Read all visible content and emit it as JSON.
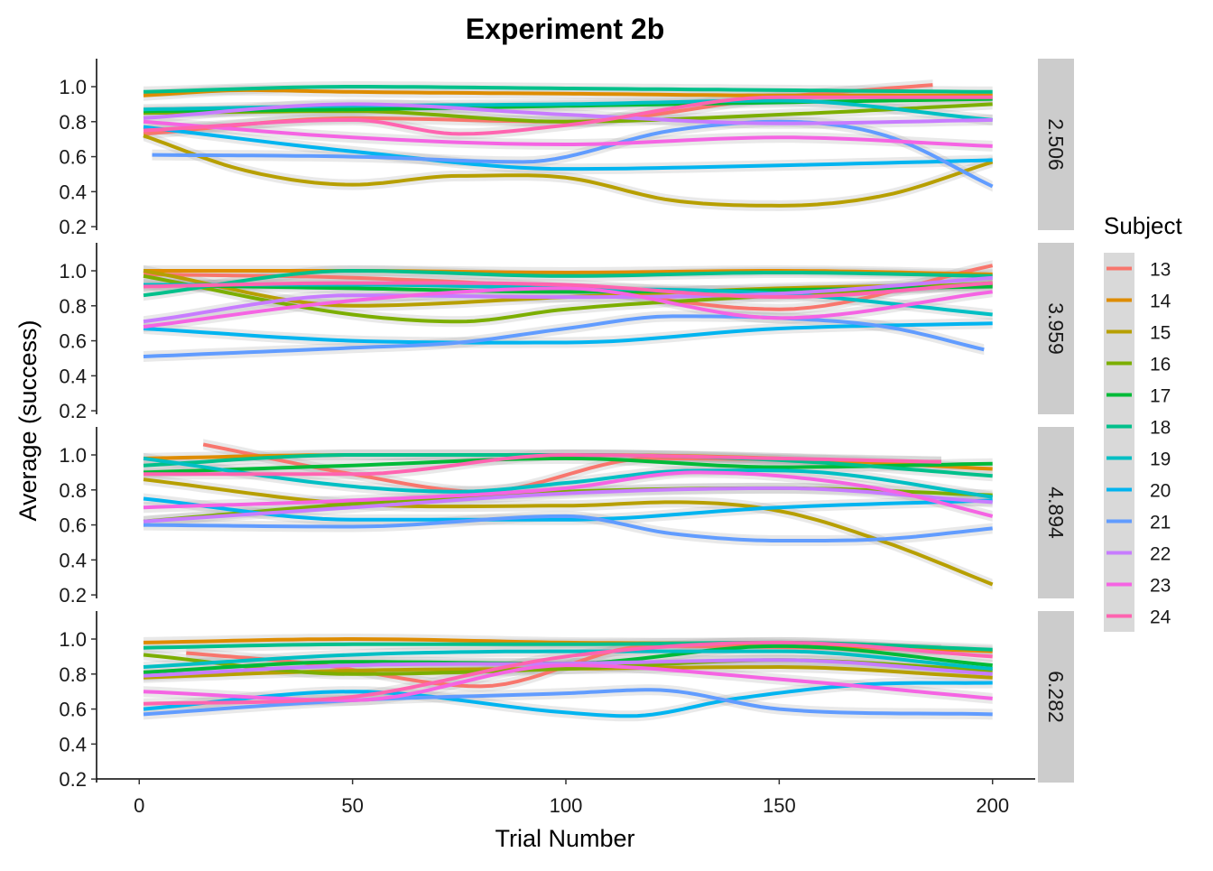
{
  "chart_data": {
    "type": "line",
    "title": "Experiment 2b",
    "xlabel": "Trial Number",
    "ylabel": "Average (success)",
    "xlim": [
      -10,
      210
    ],
    "ylim": [
      0.18,
      1.16
    ],
    "xticks": [
      0,
      50,
      100,
      150,
      200
    ],
    "xtick_labels": [
      "0",
      "50",
      "100",
      "150",
      "200"
    ],
    "yticks": [
      0.2,
      0.4,
      0.6,
      0.8,
      1.0
    ],
    "ytick_labels": [
      "0.2",
      "0.4",
      "0.6",
      "0.8",
      "1.0"
    ],
    "grid": false,
    "legend": {
      "title": "Subject",
      "position": "right"
    },
    "subjects": [
      {
        "name": "13",
        "color": "#F8766D"
      },
      {
        "name": "14",
        "color": "#DE8C00"
      },
      {
        "name": "15",
        "color": "#B79F00"
      },
      {
        "name": "16",
        "color": "#7CAE00"
      },
      {
        "name": "17",
        "color": "#00BA38"
      },
      {
        "name": "18",
        "color": "#00C08B"
      },
      {
        "name": "19",
        "color": "#00BFC4"
      },
      {
        "name": "20",
        "color": "#00B4F0"
      },
      {
        "name": "21",
        "color": "#619CFF"
      },
      {
        "name": "22",
        "color": "#C77CFF"
      },
      {
        "name": "23",
        "color": "#F564E3"
      },
      {
        "name": "24",
        "color": "#FF64B0"
      }
    ],
    "panels": [
      {
        "label": "2.506",
        "series": [
          {
            "subject": "13",
            "x": [
              1,
              50,
              100,
              150,
              186
            ],
            "y": [
              0.73,
              0.82,
              0.8,
              0.94,
              1.01
            ]
          },
          {
            "subject": "14",
            "x": [
              1,
              25,
              50,
              100,
              150,
              200
            ],
            "y": [
              0.95,
              0.98,
              0.97,
              0.96,
              0.95,
              0.95
            ]
          },
          {
            "subject": "15",
            "x": [
              1,
              25,
              50,
              75,
              100,
              125,
              150,
              175,
              200
            ],
            "y": [
              0.72,
              0.52,
              0.44,
              0.49,
              0.48,
              0.35,
              0.32,
              0.38,
              0.57
            ]
          },
          {
            "subject": "16",
            "x": [
              1,
              50,
              100,
              150,
              200
            ],
            "y": [
              0.85,
              0.86,
              0.8,
              0.84,
              0.9
            ]
          },
          {
            "subject": "17",
            "x": [
              1,
              50,
              100,
              150,
              200
            ],
            "y": [
              0.86,
              0.87,
              0.89,
              0.91,
              0.93
            ]
          },
          {
            "subject": "18",
            "x": [
              1,
              50,
              100,
              150,
              200
            ],
            "y": [
              0.97,
              1.0,
              0.99,
              0.98,
              0.97
            ]
          },
          {
            "subject": "19",
            "x": [
              1,
              50,
              100,
              150,
              200
            ],
            "y": [
              0.87,
              0.89,
              0.9,
              0.92,
              0.81
            ]
          },
          {
            "subject": "20",
            "x": [
              1,
              50,
              100,
              150,
              200
            ],
            "y": [
              0.77,
              0.63,
              0.53,
              0.55,
              0.58
            ]
          },
          {
            "subject": "21",
            "x": [
              3,
              50,
              90,
              125,
              150,
              175,
              200
            ],
            "y": [
              0.61,
              0.6,
              0.57,
              0.75,
              0.8,
              0.72,
              0.43
            ]
          },
          {
            "subject": "22",
            "x": [
              1,
              50,
              100,
              150,
              200
            ],
            "y": [
              0.82,
              0.9,
              0.84,
              0.79,
              0.81
            ]
          },
          {
            "subject": "23",
            "x": [
              1,
              50,
              100,
              150,
              200
            ],
            "y": [
              0.8,
              0.71,
              0.67,
              0.71,
              0.66
            ]
          },
          {
            "subject": "24",
            "x": [
              1,
              50,
              75,
              100,
              150,
              200
            ],
            "y": [
              0.75,
              0.81,
              0.73,
              0.78,
              0.94,
              0.94
            ]
          }
        ]
      },
      {
        "label": "3.959",
        "series": [
          {
            "subject": "13",
            "x": [
              1,
              50,
              100,
              150,
              200
            ],
            "y": [
              0.98,
              0.96,
              0.9,
              0.78,
              1.03
            ]
          },
          {
            "subject": "14",
            "x": [
              1,
              50,
              100,
              150,
              200
            ],
            "y": [
              1.0,
              1.0,
              0.99,
              1.0,
              0.98
            ]
          },
          {
            "subject": "15",
            "x": [
              1,
              50,
              100,
              150,
              200
            ],
            "y": [
              1.0,
              0.8,
              0.85,
              0.9,
              0.92
            ]
          },
          {
            "subject": "16",
            "x": [
              1,
              50,
              75,
              100,
              150,
              200
            ],
            "y": [
              0.97,
              0.75,
              0.71,
              0.78,
              0.86,
              0.93
            ]
          },
          {
            "subject": "17",
            "x": [
              1,
              50,
              100,
              150,
              200
            ],
            "y": [
              0.92,
              0.9,
              0.88,
              0.89,
              0.91
            ]
          },
          {
            "subject": "18",
            "x": [
              1,
              50,
              100,
              150,
              200
            ],
            "y": [
              0.86,
              1.0,
              0.97,
              0.99,
              0.97
            ]
          },
          {
            "subject": "19",
            "x": [
              1,
              50,
              100,
              150,
              200
            ],
            "y": [
              0.92,
              0.92,
              0.9,
              0.87,
              0.75
            ]
          },
          {
            "subject": "20",
            "x": [
              1,
              50,
              100,
              150,
              200
            ],
            "y": [
              0.67,
              0.6,
              0.59,
              0.67,
              0.7
            ]
          },
          {
            "subject": "21",
            "x": [
              1,
              50,
              75,
              100,
              125,
              150,
              175,
              198
            ],
            "y": [
              0.51,
              0.56,
              0.59,
              0.67,
              0.74,
              0.73,
              0.68,
              0.55
            ]
          },
          {
            "subject": "22",
            "x": [
              1,
              50,
              100,
              150,
              200
            ],
            "y": [
              0.71,
              0.86,
              0.85,
              0.87,
              0.96
            ]
          },
          {
            "subject": "23",
            "x": [
              1,
              50,
              100,
              150,
              200
            ],
            "y": [
              0.68,
              0.83,
              0.9,
              0.73,
              0.88
            ]
          },
          {
            "subject": "24",
            "x": [
              1,
              50,
              100,
              150,
              200
            ],
            "y": [
              0.91,
              0.93,
              0.92,
              0.85,
              0.93
            ]
          }
        ]
      },
      {
        "label": "4.894",
        "series": [
          {
            "subject": "13",
            "x": [
              15,
              50,
              80,
              120,
              160,
              188
            ],
            "y": [
              1.06,
              0.89,
              0.79,
              0.98,
              0.97,
              0.96
            ]
          },
          {
            "subject": "14",
            "x": [
              1,
              50,
              100,
              150,
              200
            ],
            "y": [
              0.98,
              1.0,
              1.0,
              0.98,
              0.92
            ]
          },
          {
            "subject": "15",
            "x": [
              1,
              50,
              100,
              125,
              150,
              175,
              200
            ],
            "y": [
              0.86,
              0.72,
              0.71,
              0.73,
              0.68,
              0.5,
              0.26
            ]
          },
          {
            "subject": "16",
            "x": [
              1,
              50,
              100,
              150,
              200
            ],
            "y": [
              0.62,
              0.72,
              0.79,
              0.81,
              0.77
            ]
          },
          {
            "subject": "17",
            "x": [
              1,
              50,
              100,
              150,
              200
            ],
            "y": [
              0.9,
              0.94,
              0.98,
              0.93,
              0.95
            ]
          },
          {
            "subject": "18",
            "x": [
              1,
              50,
              100,
              150,
              200
            ],
            "y": [
              0.94,
              1.0,
              1.0,
              0.97,
              0.88
            ]
          },
          {
            "subject": "19",
            "x": [
              1,
              50,
              75,
              100,
              130,
              160,
              200
            ],
            "y": [
              0.98,
              0.82,
              0.79,
              0.84,
              0.91,
              0.9,
              0.76
            ]
          },
          {
            "subject": "20",
            "x": [
              1,
              50,
              100,
              150,
              200
            ],
            "y": [
              0.75,
              0.63,
              0.63,
              0.7,
              0.74
            ]
          },
          {
            "subject": "21",
            "x": [
              1,
              50,
              100,
              125,
              150,
              175,
              200
            ],
            "y": [
              0.6,
              0.59,
              0.65,
              0.55,
              0.51,
              0.52,
              0.58
            ]
          },
          {
            "subject": "22",
            "x": [
              1,
              50,
              100,
              150,
              200
            ],
            "y": [
              0.62,
              0.7,
              0.78,
              0.81,
              0.73
            ]
          },
          {
            "subject": "23",
            "x": [
              1,
              50,
              100,
              130,
              150,
              175,
              200
            ],
            "y": [
              0.7,
              0.74,
              0.81,
              0.9,
              0.88,
              0.8,
              0.65
            ]
          },
          {
            "subject": "24",
            "x": [
              1,
              50,
              100,
              150,
              188
            ],
            "y": [
              0.89,
              0.89,
              1.0,
              0.98,
              0.96
            ]
          }
        ]
      },
      {
        "label": "6.282",
        "series": [
          {
            "subject": "13",
            "x": [
              11,
              40,
              80,
              120,
              188
            ],
            "y": [
              0.92,
              0.86,
              0.73,
              0.96,
              0.94
            ]
          },
          {
            "subject": "14",
            "x": [
              1,
              50,
              100,
              150,
              200
            ],
            "y": [
              0.98,
              1.0,
              0.98,
              0.97,
              0.93
            ]
          },
          {
            "subject": "15",
            "x": [
              1,
              50,
              100,
              150,
              200
            ],
            "y": [
              0.78,
              0.82,
              0.83,
              0.84,
              0.78
            ]
          },
          {
            "subject": "16",
            "x": [
              1,
              50,
              100,
              150,
              200
            ],
            "y": [
              0.91,
              0.8,
              0.83,
              0.88,
              0.82
            ]
          },
          {
            "subject": "17",
            "x": [
              1,
              50,
              100,
              150,
              200
            ],
            "y": [
              0.81,
              0.87,
              0.86,
              0.96,
              0.85
            ]
          },
          {
            "subject": "18",
            "x": [
              1,
              50,
              100,
              150,
              200
            ],
            "y": [
              0.95,
              0.97,
              0.97,
              0.98,
              0.94
            ]
          },
          {
            "subject": "19",
            "x": [
              1,
              50,
              100,
              150,
              200
            ],
            "y": [
              0.84,
              0.91,
              0.93,
              0.93,
              0.83
            ]
          },
          {
            "subject": "20",
            "x": [
              1,
              50,
              100,
              115,
              140,
              170,
              200
            ],
            "y": [
              0.6,
              0.7,
              0.58,
              0.56,
              0.66,
              0.74,
              0.75
            ]
          },
          {
            "subject": "21",
            "x": [
              1,
              50,
              100,
              120,
              150,
              200
            ],
            "y": [
              0.57,
              0.65,
              0.69,
              0.71,
              0.6,
              0.57
            ]
          },
          {
            "subject": "22",
            "x": [
              1,
              50,
              100,
              150,
              200
            ],
            "y": [
              0.79,
              0.85,
              0.86,
              0.88,
              0.8
            ]
          },
          {
            "subject": "23",
            "x": [
              1,
              50,
              100,
              150,
              200
            ],
            "y": [
              0.7,
              0.65,
              0.85,
              0.77,
              0.66
            ]
          },
          {
            "subject": "24",
            "x": [
              1,
              50,
              100,
              150,
              200
            ],
            "y": [
              0.63,
              0.67,
              0.9,
              0.98,
              0.9
            ]
          }
        ]
      }
    ]
  }
}
